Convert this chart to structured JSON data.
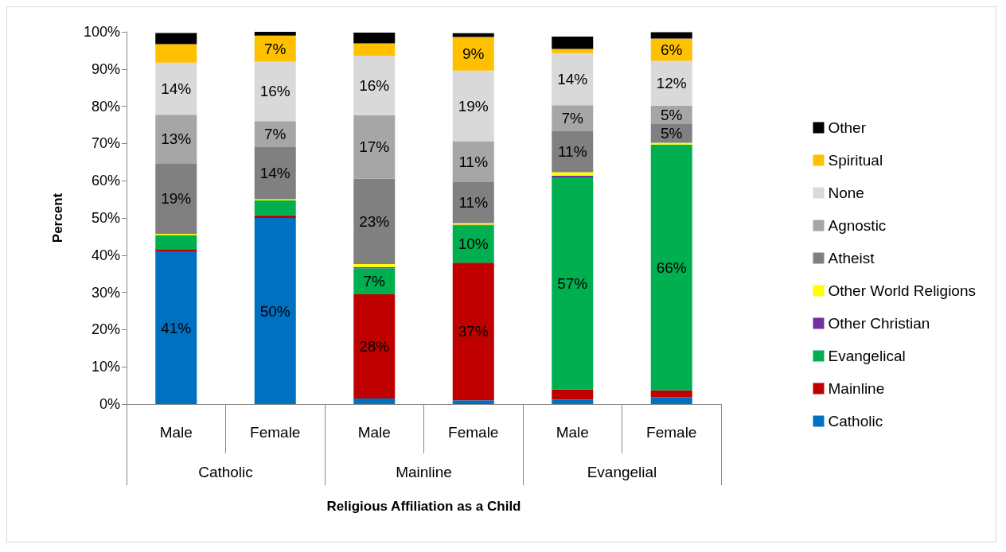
{
  "chart_data": {
    "type": "bar",
    "stacked": true,
    "xlabel": "Religious Affiliation as a Child",
    "ylabel": "Percent",
    "categories": [
      "Male",
      "Female",
      "Male",
      "Female",
      "Male",
      "Female"
    ],
    "annotations": [
      "Catholic",
      "Mainline",
      "Evangelial"
    ],
    "ylim": [
      0,
      100
    ],
    "yticks": [
      {
        "value": 0,
        "label": "0%"
      },
      {
        "value": 10,
        "label": "10%"
      },
      {
        "value": 20,
        "label": "20%"
      },
      {
        "value": 30,
        "label": "30%"
      },
      {
        "value": 40,
        "label": "40%"
      },
      {
        "value": 50,
        "label": "50%"
      },
      {
        "value": 60,
        "label": "60%"
      },
      {
        "value": 70,
        "label": "70%"
      },
      {
        "value": 80,
        "label": "80%"
      },
      {
        "value": 90,
        "label": "90%"
      },
      {
        "value": 100,
        "label": "100%"
      }
    ],
    "grid": false,
    "legend": "right",
    "series": [
      {
        "name": "Catholic",
        "color": "#0070c0",
        "values": [
          41,
          50,
          1.5,
          1,
          1.2,
          1.8
        ],
        "value_labels": [
          "41%",
          "50%",
          null,
          null,
          null,
          null
        ]
      },
      {
        "name": "Mainline",
        "color": "#c00000",
        "values": [
          0.6,
          0.7,
          28,
          37,
          2.7,
          1.9
        ],
        "value_labels": [
          null,
          null,
          "28%",
          "37%",
          null,
          null
        ]
      },
      {
        "name": "Evangelical",
        "color": "#00b050",
        "values": [
          3.8,
          4,
          7,
          10,
          57,
          66
        ],
        "value_labels": [
          null,
          null,
          "7%",
          "10%",
          "57%",
          "66%"
        ]
      },
      {
        "name": "Other Christian",
        "color": "#7030a0",
        "values": [
          0,
          0,
          0.3,
          0.2,
          0.4,
          0
        ],
        "value_labels": [
          null,
          null,
          null,
          null,
          null,
          null
        ]
      },
      {
        "name": "Other World Religions",
        "color": "#ffff00",
        "values": [
          0.3,
          0.3,
          0.8,
          0.4,
          1,
          0.5
        ],
        "value_labels": [
          null,
          null,
          null,
          null,
          null,
          null
        ]
      },
      {
        "name": "Atheist",
        "color": "#808080",
        "values": [
          19,
          14,
          23,
          11,
          11,
          5
        ],
        "value_labels": [
          "19%",
          "14%",
          "23%",
          "11%",
          "11%",
          "5%"
        ]
      },
      {
        "name": "Agnostic",
        "color": "#a6a6a6",
        "values": [
          13,
          7,
          17,
          11,
          7,
          5
        ],
        "value_labels": [
          "13%",
          "7%",
          "17%",
          "11%",
          "7%",
          "5%"
        ]
      },
      {
        "name": "None",
        "color": "#d9d9d9",
        "values": [
          14,
          16,
          16,
          19,
          14,
          12
        ],
        "value_labels": [
          "14%",
          "16%",
          "16%",
          "19%",
          "14%",
          "12%"
        ]
      },
      {
        "name": "Spiritual",
        "color": "#ffc000",
        "values": [
          5,
          7,
          3.3,
          9,
          1.1,
          6
        ],
        "value_labels": [
          null,
          "7%",
          null,
          "9%",
          null,
          "6%"
        ]
      },
      {
        "name": "Other",
        "color": "#000000",
        "values": [
          3,
          1.4,
          2.9,
          1,
          3.3,
          1.7
        ],
        "value_labels": [
          null,
          null,
          null,
          null,
          null,
          null
        ]
      }
    ]
  }
}
